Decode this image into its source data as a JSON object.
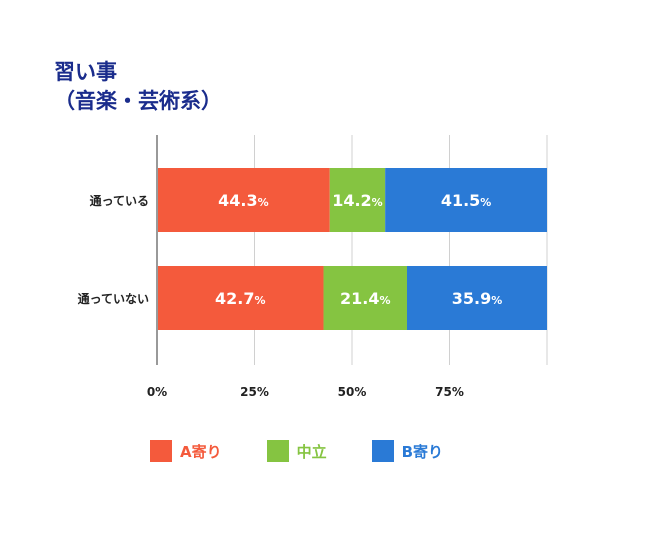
{
  "title": {
    "line1": "習い事",
    "line2": "（音楽・芸術系）"
  },
  "chart_data": {
    "type": "bar",
    "orientation": "horizontal",
    "stacked": true,
    "percent_stacked": true,
    "categories": [
      "通っている",
      "通っていない"
    ],
    "series": [
      {
        "name": "A寄り",
        "values": [
          44.3,
          42.7
        ],
        "color": "#f45a3c"
      },
      {
        "name": "中立",
        "values": [
          14.2,
          21.4
        ],
        "color": "#85c441"
      },
      {
        "name": "B寄り",
        "values": [
          41.5,
          35.9
        ],
        "color": "#2a7ad6"
      }
    ],
    "value_suffix": "%",
    "xlim": [
      0,
      100
    ],
    "xticks": [
      "0%",
      "25%",
      "50%",
      "75%"
    ],
    "grid": true,
    "legend_position": "bottom"
  }
}
